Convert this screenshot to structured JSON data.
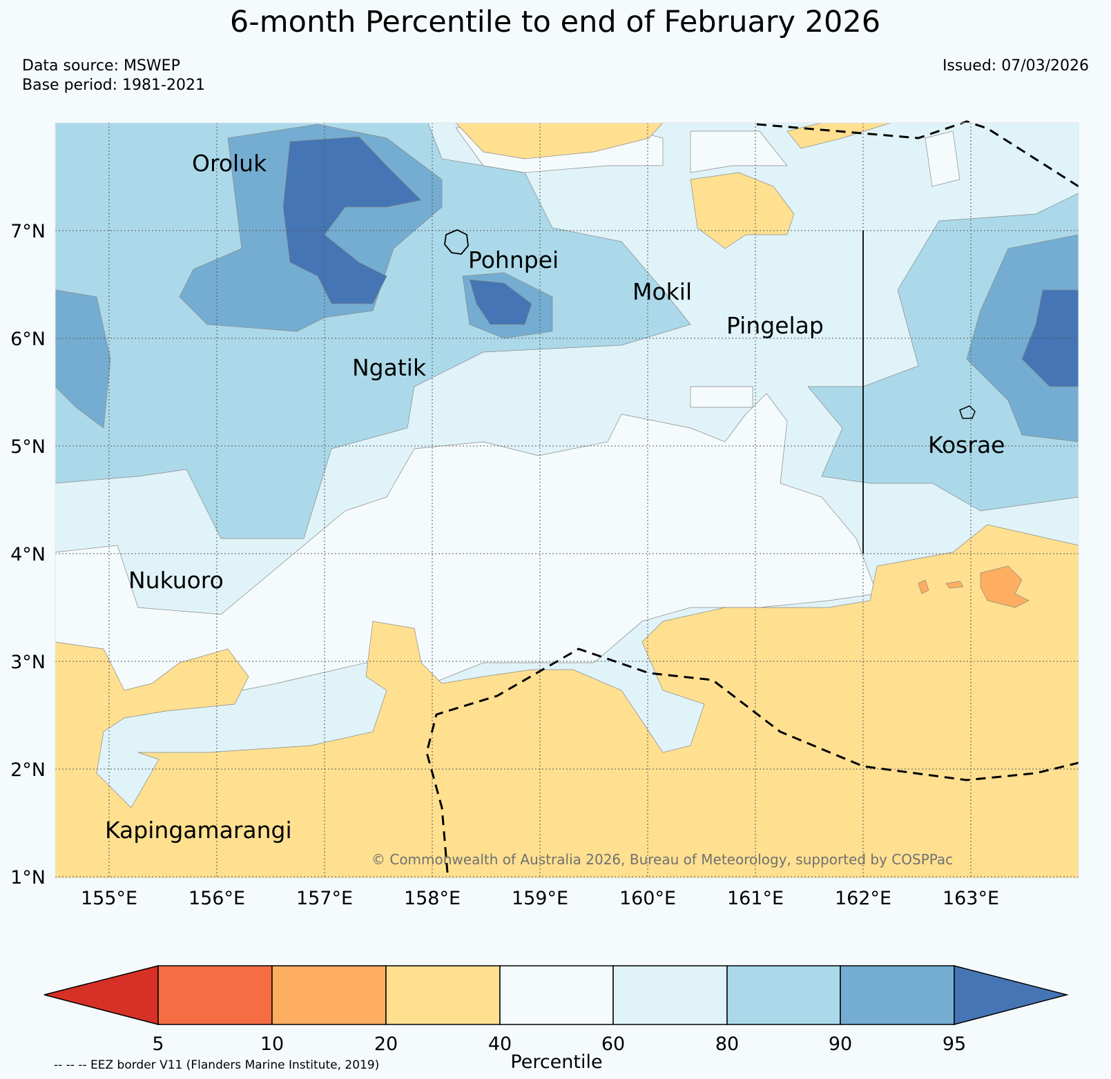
{
  "header": {
    "title": "6-month Percentile to end of February 2026",
    "data_source": "Data source: MSWEP",
    "base_period": "Base period: 1981-2021",
    "issued": "Issued: 07/03/2026"
  },
  "map": {
    "x_ticks": [
      "155°E",
      "156°E",
      "157°E",
      "158°E",
      "159°E",
      "160°E",
      "161°E",
      "162°E",
      "163°E"
    ],
    "y_ticks": [
      "7°N",
      "6°N",
      "5°N",
      "4°N",
      "3°N",
      "2°N",
      "1°N"
    ],
    "places": [
      "Oroluk",
      "Pohnpei",
      "Mokil",
      "Pingelap",
      "Ngatik",
      "Kosrae",
      "Nukuoro",
      "Kapingamarangi"
    ],
    "credit": "© Commonwealth of Australia 2026, Bureau of Meteorology, supported by COSPPac"
  },
  "colorbar": {
    "label": "Percentile",
    "ticks": [
      "5",
      "10",
      "20",
      "40",
      "60",
      "80",
      "90",
      "95"
    ],
    "colors": {
      "below5": "#d73027",
      "p5_10": "#f46d43",
      "p10_20": "#fdae61",
      "p20_40": "#fee090",
      "p40_60": "#f5fafd",
      "p60_80": "#e0f3f8",
      "p80_90": "#abd9e9",
      "p90_95": "#74add1",
      "above95": "#4575b4"
    }
  },
  "legend": {
    "eez_note": "-- -- -- EEZ border V11 (Flanders Marine Institute, 2019)"
  }
}
